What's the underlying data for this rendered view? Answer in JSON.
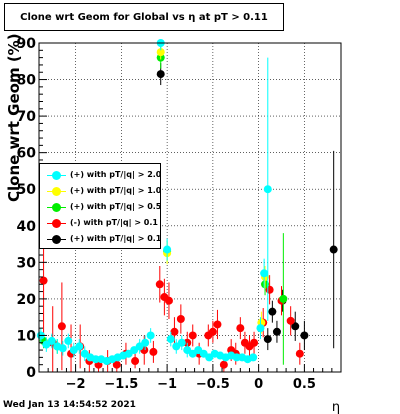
{
  "header": {
    "title": "Clone wrt Geom for Global vs   η at pT > 0.11"
  },
  "footer": {
    "date": "Wed Jan 13 14:54:52 2021"
  },
  "chart_data": {
    "type": "scatter",
    "title": "Clone wrt Geom for Global vs   η at pT > 0.11",
    "xlabel": "η",
    "ylabel": "Clone wrt Geom (%)",
    "xlim": [
      -2.4,
      0.9
    ],
    "ylim": [
      0,
      90
    ],
    "xticks": [
      -2,
      -1.5,
      -1,
      -0.5,
      0,
      0.5
    ],
    "xtick_labels": [
      "−2",
      "−1.5",
      "−1",
      "−0.5",
      "0",
      "0.5"
    ],
    "yticks": [
      0,
      10,
      20,
      30,
      40,
      50,
      60,
      70,
      80,
      90
    ],
    "grid": true,
    "legend_position": "left-middle",
    "series": [
      {
        "name": "(+) with pT/|q| > 0.1",
        "color": "#000000",
        "points": [
          {
            "x": -1.07,
            "y": 81.5,
            "err": 3
          },
          {
            "x": 0.1,
            "y": 9,
            "err": 3
          },
          {
            "x": 0.15,
            "y": 16.5,
            "err": 3
          },
          {
            "x": 0.2,
            "y": 11,
            "err": 3
          },
          {
            "x": 0.26,
            "y": 19.5,
            "err": 3
          },
          {
            "x": 0.4,
            "y": 12.5,
            "err": 4
          },
          {
            "x": 0.5,
            "y": 10,
            "err": 4
          },
          {
            "x": 0.82,
            "y": 33.5,
            "err": 27
          }
        ]
      },
      {
        "name": "(-) with pT/|q| > 0.1",
        "color": "#ff0000",
        "points": [
          {
            "x": -2.35,
            "y": 25,
            "err": 18
          },
          {
            "x": -2.25,
            "y": 8,
            "err": 10
          },
          {
            "x": -2.15,
            "y": 12.5,
            "err": 12
          },
          {
            "x": -2.05,
            "y": 5,
            "err": 8
          },
          {
            "x": -1.95,
            "y": 7,
            "err": 6
          },
          {
            "x": -1.85,
            "y": 3,
            "err": 3
          },
          {
            "x": -1.75,
            "y": 2,
            "err": 2
          },
          {
            "x": -1.65,
            "y": 3,
            "err": 3
          },
          {
            "x": -1.55,
            "y": 2,
            "err": 2
          },
          {
            "x": -1.45,
            "y": 5,
            "err": 3
          },
          {
            "x": -1.35,
            "y": 3,
            "err": 2
          },
          {
            "x": -1.25,
            "y": 6,
            "err": 4
          },
          {
            "x": -1.15,
            "y": 5.5,
            "err": 3
          },
          {
            "x": -1.08,
            "y": 24,
            "err": 5
          },
          {
            "x": -1.03,
            "y": 20.5,
            "err": 5
          },
          {
            "x": -0.98,
            "y": 19.5,
            "err": 5
          },
          {
            "x": -0.92,
            "y": 11,
            "err": 4
          },
          {
            "x": -0.85,
            "y": 14.5,
            "err": 4
          },
          {
            "x": -0.78,
            "y": 8,
            "err": 3
          },
          {
            "x": -0.72,
            "y": 10,
            "err": 3
          },
          {
            "x": -0.65,
            "y": 5,
            "err": 3
          },
          {
            "x": -0.55,
            "y": 10,
            "err": 3
          },
          {
            "x": -0.5,
            "y": 11,
            "err": 3
          },
          {
            "x": -0.45,
            "y": 13,
            "err": 4
          },
          {
            "x": -0.38,
            "y": 2,
            "err": 2
          },
          {
            "x": -0.3,
            "y": 6,
            "err": 3
          },
          {
            "x": -0.25,
            "y": 5,
            "err": 3
          },
          {
            "x": -0.2,
            "y": 12,
            "err": 3
          },
          {
            "x": -0.15,
            "y": 8,
            "err": 3
          },
          {
            "x": -0.1,
            "y": 7,
            "err": 3
          },
          {
            "x": -0.05,
            "y": 8,
            "err": 3
          },
          {
            "x": 0.05,
            "y": 13.5,
            "err": 4
          },
          {
            "x": 0.12,
            "y": 22.5,
            "err": 4
          },
          {
            "x": 0.25,
            "y": 19.5,
            "err": 4
          },
          {
            "x": 0.35,
            "y": 14,
            "err": 4
          },
          {
            "x": 0.45,
            "y": 5,
            "err": 3
          }
        ]
      },
      {
        "name": "(+) with pT/|q| > 0.5",
        "color": "#00ee00",
        "points": [
          {
            "x": -2.35,
            "y": 8.5,
            "err": 2
          },
          {
            "x": -2.2,
            "y": 7,
            "err": 2
          },
          {
            "x": -1.07,
            "y": 86,
            "err": 3
          },
          {
            "x": -1.0,
            "y": 33,
            "err": 3
          },
          {
            "x": 0.07,
            "y": 24,
            "err": 3
          },
          {
            "x": 0.27,
            "y": 20,
            "err": 18
          }
        ]
      },
      {
        "name": "(+) with pT/|q| > 1.0",
        "color": "#ffff00",
        "points": [
          {
            "x": -1.07,
            "y": 87.5,
            "err": 2
          },
          {
            "x": -1.0,
            "y": 32.5,
            "err": 3
          },
          {
            "x": 0.03,
            "y": 13.5,
            "err": 3
          },
          {
            "x": 0.07,
            "y": 26,
            "err": 3
          }
        ]
      },
      {
        "name": "(+) with pT/|q| > 2.0",
        "color": "#00ffff",
        "points": [
          {
            "x": -2.38,
            "y": 10,
            "err": 2
          },
          {
            "x": -2.32,
            "y": 7.5,
            "err": 2
          },
          {
            "x": -2.26,
            "y": 8.5,
            "err": 2
          },
          {
            "x": -2.2,
            "y": 7,
            "err": 2
          },
          {
            "x": -2.14,
            "y": 6.5,
            "err": 2
          },
          {
            "x": -2.08,
            "y": 8.5,
            "err": 2
          },
          {
            "x": -2.02,
            "y": 6,
            "err": 2
          },
          {
            "x": -1.96,
            "y": 7,
            "err": 2
          },
          {
            "x": -1.9,
            "y": 5,
            "err": 2
          },
          {
            "x": -1.84,
            "y": 4,
            "err": 1
          },
          {
            "x": -1.78,
            "y": 3.5,
            "err": 1
          },
          {
            "x": -1.72,
            "y": 3.5,
            "err": 1
          },
          {
            "x": -1.66,
            "y": 3,
            "err": 1
          },
          {
            "x": -1.6,
            "y": 3.5,
            "err": 1
          },
          {
            "x": -1.54,
            "y": 4,
            "err": 1
          },
          {
            "x": -1.48,
            "y": 4.5,
            "err": 1
          },
          {
            "x": -1.42,
            "y": 5,
            "err": 1
          },
          {
            "x": -1.36,
            "y": 6,
            "err": 1
          },
          {
            "x": -1.3,
            "y": 7,
            "err": 2
          },
          {
            "x": -1.24,
            "y": 8,
            "err": 2
          },
          {
            "x": -1.18,
            "y": 10,
            "err": 2
          },
          {
            "x": -1.07,
            "y": 90,
            "err": 2
          },
          {
            "x": -1.0,
            "y": 33.5,
            "err": 3
          },
          {
            "x": -0.96,
            "y": 9,
            "err": 2
          },
          {
            "x": -0.9,
            "y": 7,
            "err": 2
          },
          {
            "x": -0.84,
            "y": 8,
            "err": 2
          },
          {
            "x": -0.78,
            "y": 6,
            "err": 2
          },
          {
            "x": -0.72,
            "y": 5,
            "err": 1
          },
          {
            "x": -0.66,
            "y": 6,
            "err": 1
          },
          {
            "x": -0.6,
            "y": 5,
            "err": 1
          },
          {
            "x": -0.54,
            "y": 4,
            "err": 1
          },
          {
            "x": -0.48,
            "y": 5,
            "err": 1
          },
          {
            "x": -0.42,
            "y": 4.5,
            "err": 1
          },
          {
            "x": -0.36,
            "y": 4,
            "err": 1
          },
          {
            "x": -0.3,
            "y": 4.5,
            "err": 1
          },
          {
            "x": -0.24,
            "y": 4,
            "err": 1
          },
          {
            "x": -0.18,
            "y": 4,
            "err": 1
          },
          {
            "x": -0.12,
            "y": 3.5,
            "err": 1
          },
          {
            "x": -0.06,
            "y": 4,
            "err": 1
          },
          {
            "x": 0.02,
            "y": 12,
            "err": 3
          },
          {
            "x": 0.06,
            "y": 27,
            "err": 4
          },
          {
            "x": 0.1,
            "y": 50,
            "err": 36
          }
        ]
      }
    ]
  }
}
